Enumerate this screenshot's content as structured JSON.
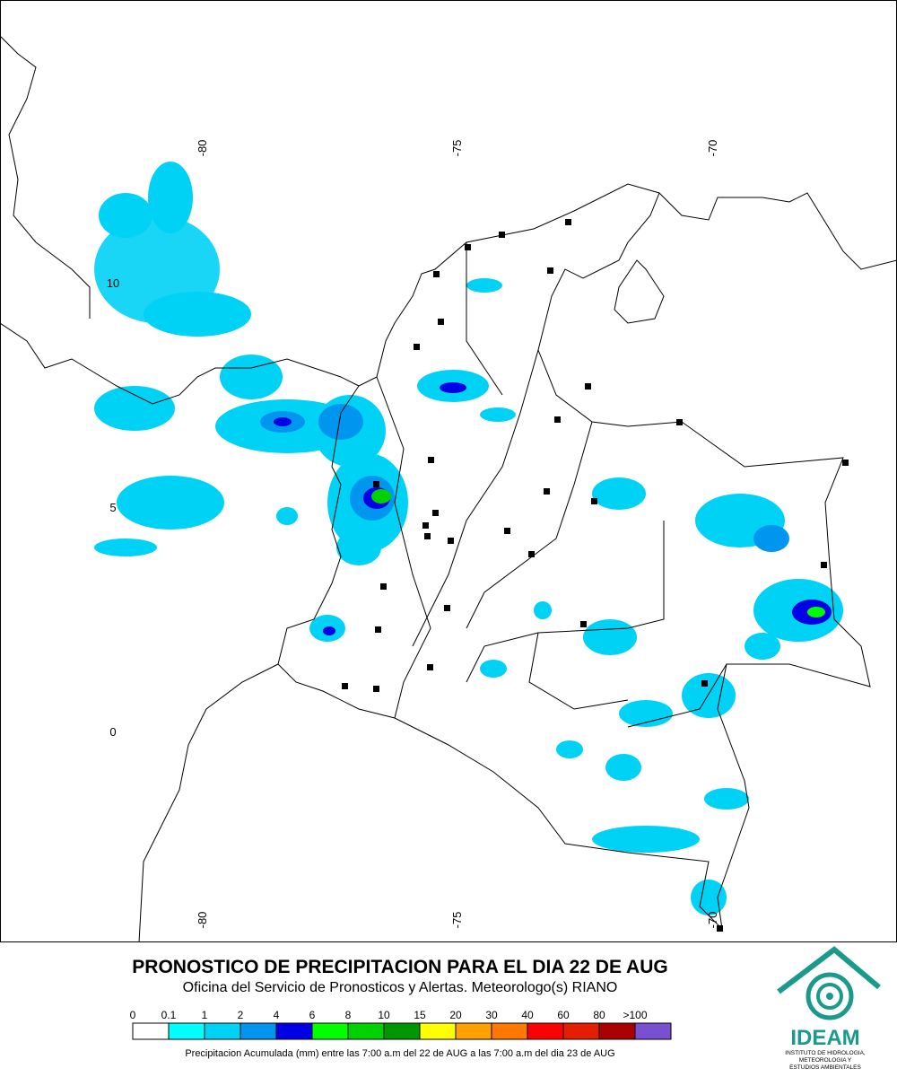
{
  "map": {
    "lon_labels": [
      "-80",
      "-75",
      "-70"
    ],
    "lat_labels": [
      "10",
      "5",
      "0"
    ]
  },
  "header": {
    "title": "PRONOSTICO DE PRECIPITACION PARA EL DIA 22 DE AUG",
    "subtitle": "Oficina del Servicio de Pronosticos y Alertas. Meteorologo(s) RIANO"
  },
  "legend": {
    "labels": [
      "0",
      "0.1",
      "1",
      "2",
      "4",
      "6",
      "8",
      "10",
      "15",
      "20",
      "30",
      "40",
      "60",
      "80",
      ">100"
    ],
    "colors": [
      "#ffffff",
      "#00ffff",
      "#00d2f5",
      "#0096f0",
      "#0000e6",
      "#00ff00",
      "#00d200",
      "#009600",
      "#ffff00",
      "#ffa000",
      "#ff7800",
      "#ff0000",
      "#e61e00",
      "#aa0000",
      "#7850d2"
    ],
    "caption": "Precipitacion Acumulada (mm) entre las 7:00 a.m del 22 de AUG a las 7:00 a.m del dia 23 de AUG"
  },
  "logo": {
    "name": "IDEAM",
    "line1": "INSTITUTO DE HIDROLOGIA,",
    "line2": "METEOROLOGIA Y",
    "line3": "ESTUDIOS AMBIENTALES"
  }
}
